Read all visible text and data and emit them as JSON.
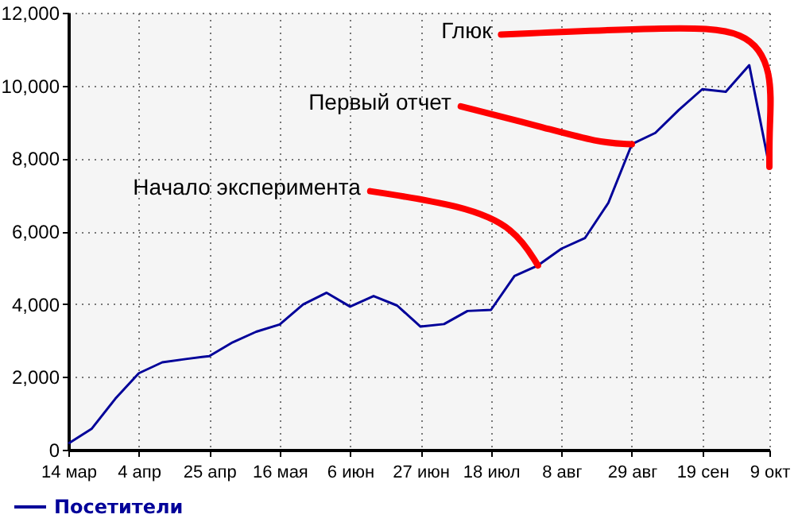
{
  "chart_data": {
    "type": "line",
    "x": [
      "--03-14",
      "--03-21",
      "--03-28",
      "--04-04",
      "--04-11",
      "--04-18",
      "--04-25",
      "--05-02",
      "--05-09",
      "--05-16",
      "--05-23",
      "--05-30",
      "--06-06",
      "--06-13",
      "--06-20",
      "--06-27",
      "--07-04",
      "--07-11",
      "--07-18",
      "--07-25",
      "--08-01",
      "--08-08",
      "--08-15",
      "--08-22",
      "--08-29",
      "--09-05",
      "--09-12",
      "--09-19",
      "--09-26",
      "--10-03",
      "--10-09"
    ],
    "series": [
      {
        "name": "Посетители",
        "color": "#000099",
        "values": [
          170,
          580,
          1400,
          2100,
          2400,
          2490,
          2570,
          2950,
          3240,
          3440,
          3990,
          4310,
          3930,
          4220,
          3960,
          3380,
          3450,
          3810,
          3840,
          4770,
          5060,
          5520,
          5810,
          6780,
          8390,
          8700,
          9330,
          9900,
          9830,
          10560,
          7770
        ]
      }
    ],
    "xlim": [
      "--03-14",
      "--10-09"
    ],
    "xticks": [
      {
        "value": "--03-14",
        "label": "14 мар"
      },
      {
        "value": "--04-04",
        "label": "4 апр"
      },
      {
        "value": "--04-25",
        "label": "25 апр"
      },
      {
        "value": "--05-16",
        "label": "16 мая"
      },
      {
        "value": "--06-06",
        "label": "6 июн"
      },
      {
        "value": "--06-27",
        "label": "27 июн"
      },
      {
        "value": "--07-18",
        "label": "18 июл"
      },
      {
        "value": "--08-08",
        "label": "8 авг"
      },
      {
        "value": "--08-29",
        "label": "29 авг"
      },
      {
        "value": "--09-19",
        "label": "19 сен"
      },
      {
        "value": "--10-09",
        "label": "9 окт"
      }
    ],
    "ylim": [
      0,
      12000
    ],
    "yticks": [
      {
        "value": 0,
        "label": "0"
      },
      {
        "value": 2000,
        "label": "2,000"
      },
      {
        "value": 4000,
        "label": "4,000"
      },
      {
        "value": 6000,
        "label": "6,000"
      },
      {
        "value": 8000,
        "label": "8,000"
      },
      {
        "value": 10000,
        "label": "10,000"
      },
      {
        "value": 12000,
        "label": "12,000"
      }
    ],
    "annotations": [
      {
        "text": "Начало эксперимента",
        "x": "--08-01",
        "y": 5060
      },
      {
        "text": "Первый отчет",
        "x": "--08-29",
        "y": 8390
      },
      {
        "text": "Глюк",
        "x": "--10-09",
        "y": 7770
      }
    ],
    "grid": true,
    "legend": "bottom left"
  }
}
